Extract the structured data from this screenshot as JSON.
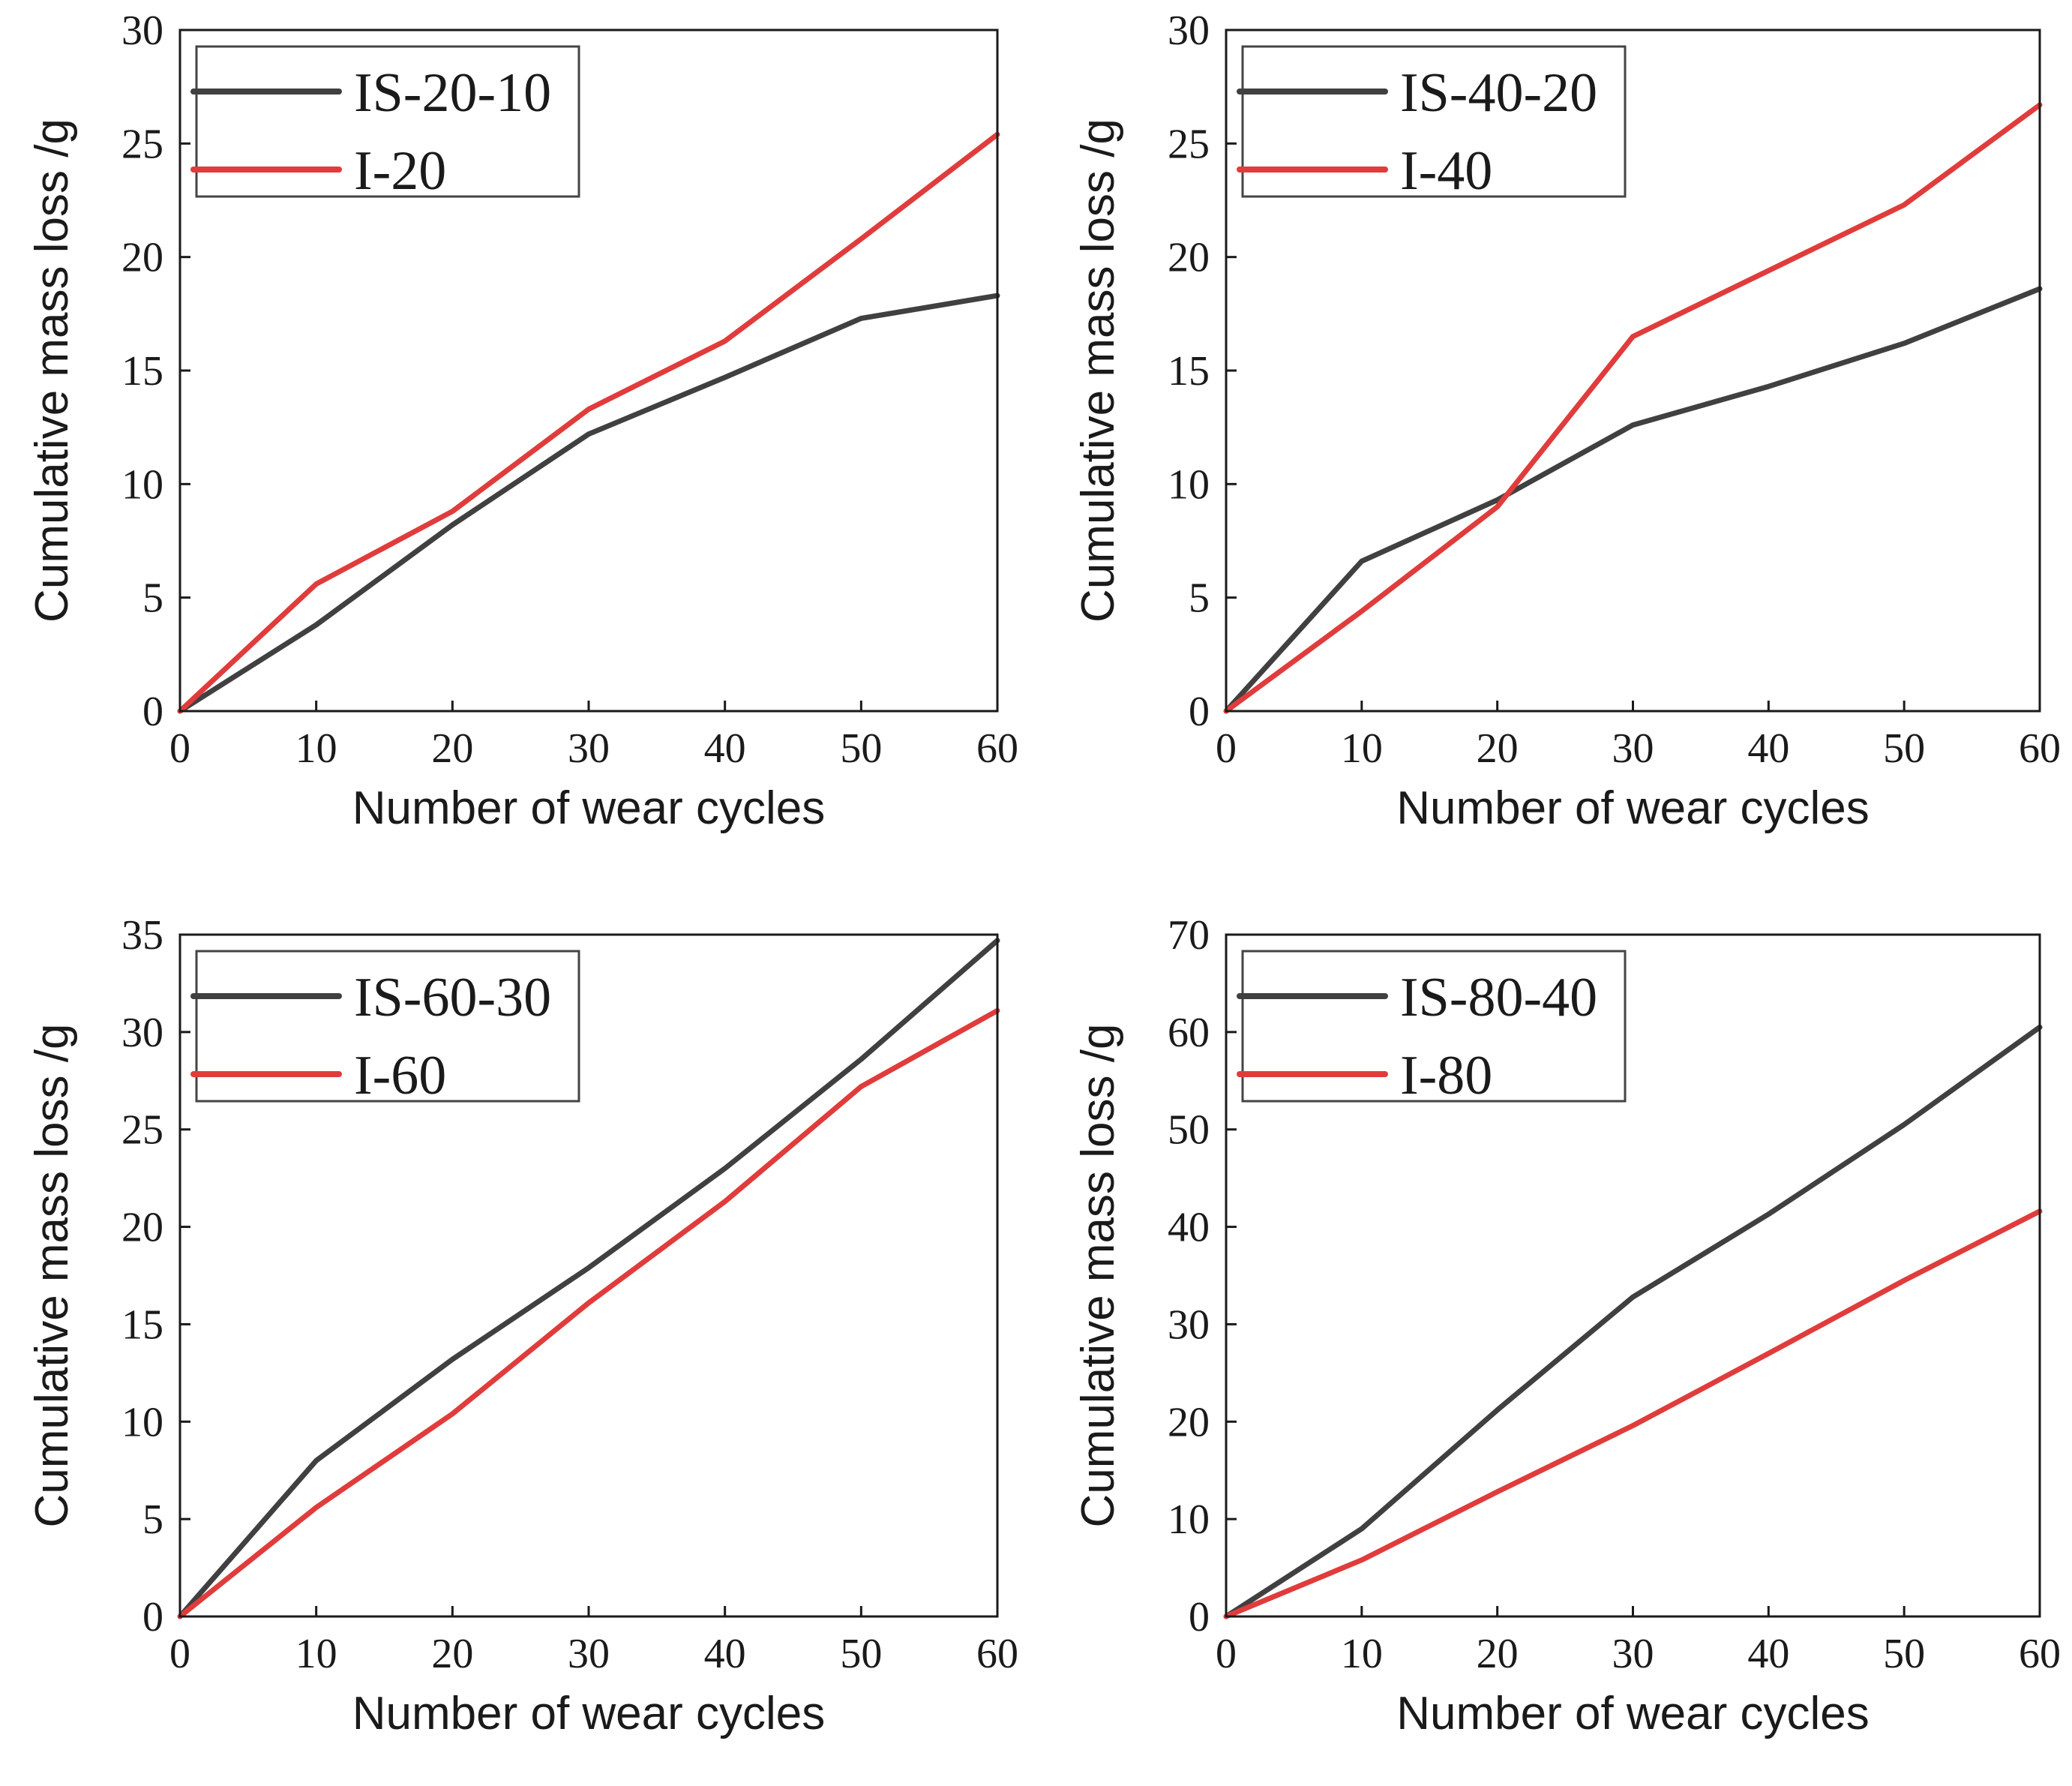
{
  "chart_data": [
    {
      "type": "line",
      "panel": "top-left",
      "title": "",
      "xlabel": "Number of wear cycles",
      "ylabel": "Cumulative mass loss /g",
      "xlim": [
        0,
        60
      ],
      "ylim": [
        0,
        30
      ],
      "xticks": [
        0,
        10,
        20,
        30,
        40,
        50,
        60
      ],
      "yticks": [
        0,
        5,
        10,
        15,
        20,
        25,
        30
      ],
      "legend_position": "top-left",
      "x": [
        0,
        10,
        20,
        30,
        40,
        50,
        60
      ],
      "series": [
        {
          "name": "IS-20-10",
          "color": "#404040",
          "values": [
            0,
            3.8,
            8.2,
            12.2,
            14.7,
            17.3,
            18.3
          ]
        },
        {
          "name": "I-20",
          "color": "#e03c3c",
          "values": [
            0,
            5.6,
            8.8,
            13.3,
            16.3,
            20.8,
            25.4
          ]
        }
      ]
    },
    {
      "type": "line",
      "panel": "top-right",
      "title": "",
      "xlabel": "Number of wear cycles",
      "ylabel": "Cumulative mass loss /g",
      "xlim": [
        0,
        60
      ],
      "ylim": [
        0,
        30
      ],
      "xticks": [
        0,
        10,
        20,
        30,
        40,
        50,
        60
      ],
      "yticks": [
        0,
        5,
        10,
        15,
        20,
        25,
        30
      ],
      "legend_position": "top-left",
      "x": [
        0,
        10,
        20,
        30,
        40,
        50,
        60
      ],
      "series": [
        {
          "name": "IS-40-20",
          "color": "#404040",
          "values": [
            0,
            6.6,
            9.3,
            12.6,
            14.3,
            16.2,
            18.6
          ]
        },
        {
          "name": "I-40",
          "color": "#e03c3c",
          "values": [
            0,
            4.4,
            9.0,
            16.5,
            19.4,
            22.3,
            26.7
          ]
        }
      ]
    },
    {
      "type": "line",
      "panel": "bottom-left",
      "title": "",
      "xlabel": "Number of wear cycles",
      "ylabel": "Cumulative mass loss /g",
      "xlim": [
        0,
        60
      ],
      "ylim": [
        0,
        35
      ],
      "xticks": [
        0,
        10,
        20,
        30,
        40,
        50,
        60
      ],
      "yticks": [
        0,
        5,
        10,
        15,
        20,
        25,
        30,
        35
      ],
      "legend_position": "top-left",
      "x": [
        0,
        10,
        20,
        30,
        40,
        50,
        60
      ],
      "series": [
        {
          "name": "IS-60-30",
          "color": "#404040",
          "values": [
            0,
            8.0,
            13.2,
            17.9,
            23.0,
            28.6,
            34.7
          ]
        },
        {
          "name": "I-60",
          "color": "#e03c3c",
          "values": [
            0,
            5.6,
            10.4,
            16.1,
            21.3,
            27.2,
            31.1
          ]
        }
      ]
    },
    {
      "type": "line",
      "panel": "bottom-right",
      "title": "",
      "xlabel": "Number of wear cycles",
      "ylabel": "Cumulative mass loss /g",
      "xlim": [
        0,
        60
      ],
      "ylim": [
        0,
        70
      ],
      "xticks": [
        0,
        10,
        20,
        30,
        40,
        50,
        60
      ],
      "yticks": [
        0,
        10,
        20,
        30,
        40,
        50,
        60,
        70
      ],
      "legend_position": "top-left",
      "x": [
        0,
        10,
        20,
        30,
        40,
        50,
        60
      ],
      "series": [
        {
          "name": "IS-80-40",
          "color": "#404040",
          "values": [
            0,
            9.0,
            21.2,
            32.8,
            41.3,
            50.5,
            60.5
          ]
        },
        {
          "name": "I-80",
          "color": "#e03c3c",
          "values": [
            0,
            5.8,
            12.8,
            19.6,
            27.0,
            34.5,
            41.6
          ]
        }
      ]
    }
  ]
}
